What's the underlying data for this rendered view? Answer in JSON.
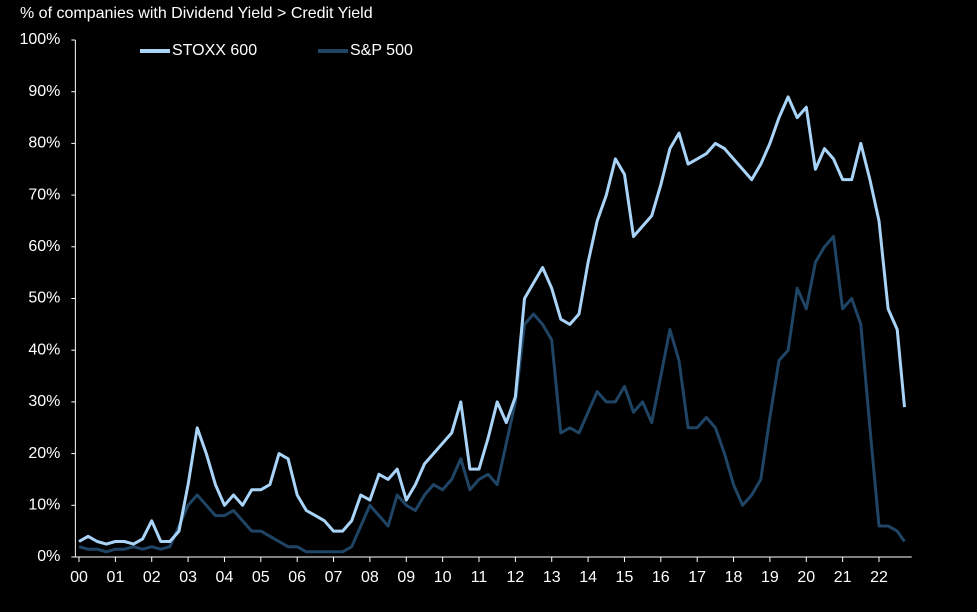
{
  "chart_data": {
    "type": "line",
    "subtitle": "% of companies with Dividend Yield > Credit Yield",
    "x": [
      0,
      0.25,
      0.5,
      0.75,
      1,
      1.25,
      1.5,
      1.75,
      2,
      2.25,
      2.5,
      2.75,
      3,
      3.25,
      3.5,
      3.75,
      4,
      4.25,
      4.5,
      4.75,
      5,
      5.25,
      5.5,
      5.75,
      6,
      6.25,
      6.5,
      6.75,
      7,
      7.25,
      7.5,
      7.75,
      8,
      8.25,
      8.5,
      8.75,
      9,
      9.25,
      9.5,
      9.75,
      10,
      10.25,
      10.5,
      10.75,
      11,
      11.25,
      11.5,
      11.75,
      12,
      12.25,
      12.5,
      12.75,
      13,
      13.25,
      13.5,
      13.75,
      14,
      14.25,
      14.5,
      14.75,
      15,
      15.25,
      15.5,
      15.75,
      16,
      16.25,
      16.5,
      16.75,
      17,
      17.25,
      17.5,
      17.75,
      18,
      18.25,
      18.5,
      18.75,
      19,
      19.25,
      19.5,
      19.75,
      20,
      20.25,
      20.5,
      20.75,
      21,
      21.25,
      21.5,
      21.75,
      22,
      22.25,
      22.5,
      22.7
    ],
    "series": [
      {
        "name": "STOXX 600",
        "color": "#a9d4f7",
        "values": [
          3,
          4,
          3,
          2.5,
          3,
          3,
          2.5,
          3.5,
          7,
          3,
          3,
          5,
          14,
          25,
          20,
          14,
          10,
          12,
          10,
          13,
          13,
          14,
          20,
          19,
          12,
          9,
          8,
          7,
          5,
          5,
          7,
          12,
          11,
          16,
          15,
          17,
          11,
          14,
          18,
          20,
          22,
          24,
          30,
          17,
          17,
          23,
          30,
          26,
          31,
          50,
          53,
          56,
          52,
          46,
          45,
          47,
          57,
          65,
          70,
          77,
          74,
          62,
          64,
          66,
          72,
          79,
          82,
          76,
          77,
          78,
          80,
          79,
          77,
          75,
          73,
          76,
          80,
          85,
          89,
          85,
          87,
          75,
          79,
          77,
          73,
          73,
          80,
          73,
          65,
          48,
          44,
          29
        ]
      },
      {
        "name": "S&P 500",
        "color": "#1f4464",
        "values": [
          2,
          1.5,
          1.5,
          1,
          1.5,
          1.5,
          2,
          1.5,
          2,
          1.5,
          2,
          6,
          10,
          12,
          10,
          8,
          8,
          9,
          7,
          5,
          5,
          4,
          3,
          2,
          2,
          1,
          1,
          1,
          1,
          1,
          2,
          6,
          10,
          8,
          6,
          12,
          10,
          9,
          12,
          14,
          13,
          15,
          19,
          13,
          15,
          16,
          14,
          22,
          30,
          45,
          47,
          45,
          42,
          24,
          25,
          24,
          28,
          32,
          30,
          30,
          33,
          28,
          30,
          26,
          35,
          44,
          38,
          25,
          25,
          27,
          25,
          20,
          14,
          10,
          12,
          15,
          27,
          38,
          40,
          52,
          48,
          57,
          60,
          62,
          48,
          50,
          45,
          25,
          6,
          6,
          5,
          3
        ]
      }
    ],
    "xlim": [
      -0.1,
      22.9
    ],
    "xticks": [
      {
        "value": 0,
        "label": "00"
      },
      {
        "value": 1,
        "label": "01"
      },
      {
        "value": 2,
        "label": "02"
      },
      {
        "value": 3,
        "label": "03"
      },
      {
        "value": 4,
        "label": "04"
      },
      {
        "value": 5,
        "label": "05"
      },
      {
        "value": 6,
        "label": "06"
      },
      {
        "value": 7,
        "label": "07"
      },
      {
        "value": 8,
        "label": "08"
      },
      {
        "value": 9,
        "label": "09"
      },
      {
        "value": 10,
        "label": "10"
      },
      {
        "value": 11,
        "label": "11"
      },
      {
        "value": 12,
        "label": "12"
      },
      {
        "value": 13,
        "label": "13"
      },
      {
        "value": 14,
        "label": "14"
      },
      {
        "value": 15,
        "label": "15"
      },
      {
        "value": 16,
        "label": "16"
      },
      {
        "value": 17,
        "label": "17"
      },
      {
        "value": 18,
        "label": "18"
      },
      {
        "value": 19,
        "label": "19"
      },
      {
        "value": 20,
        "label": "20"
      },
      {
        "value": 21,
        "label": "21"
      },
      {
        "value": 22,
        "label": "22"
      }
    ],
    "ylim": [
      0,
      100
    ],
    "yticks": [
      {
        "value": 0,
        "label": "0%"
      },
      {
        "value": 10,
        "label": "10%"
      },
      {
        "value": 20,
        "label": "20%"
      },
      {
        "value": 30,
        "label": "30%"
      },
      {
        "value": 40,
        "label": "40%"
      },
      {
        "value": 50,
        "label": "50%"
      },
      {
        "value": 60,
        "label": "60%"
      },
      {
        "value": 70,
        "label": "70%"
      },
      {
        "value": 80,
        "label": "80%"
      },
      {
        "value": 90,
        "label": "90%"
      },
      {
        "value": 100,
        "label": "100%"
      }
    ],
    "grid": false
  }
}
